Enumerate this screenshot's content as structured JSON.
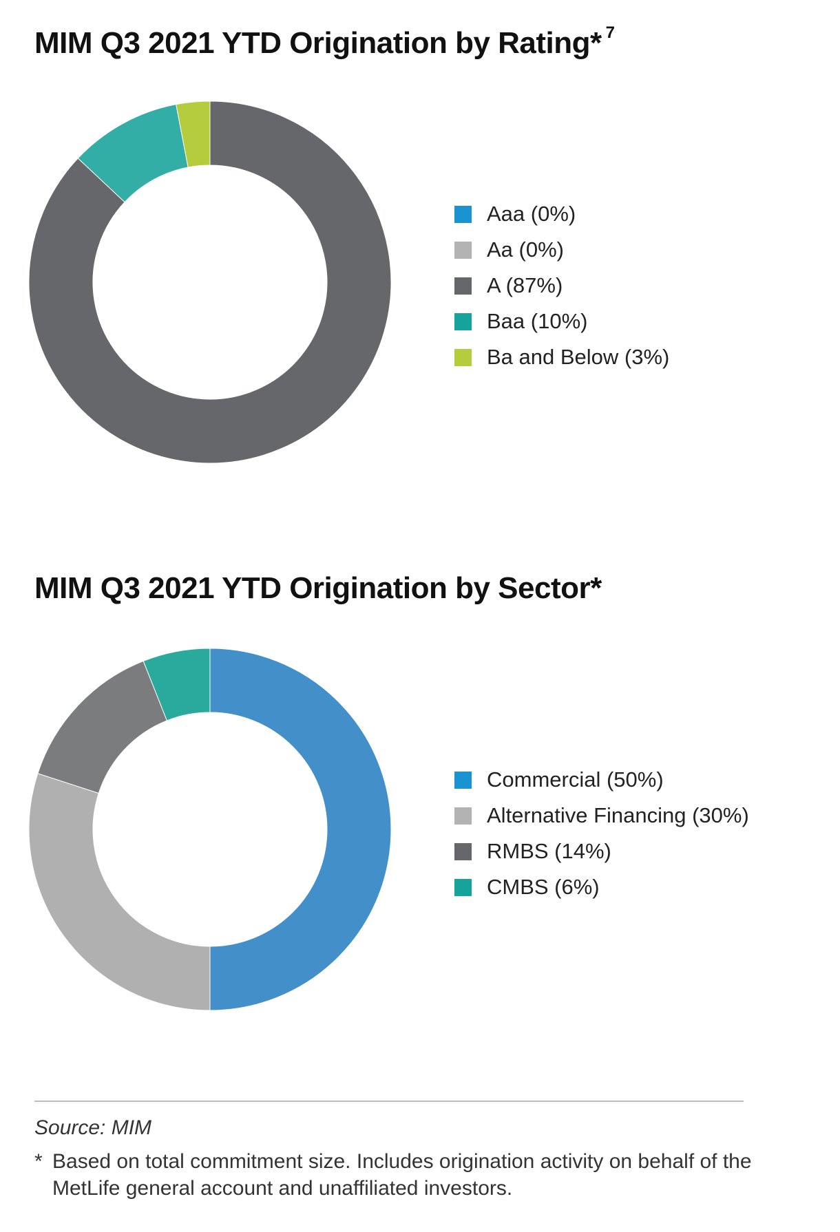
{
  "chart_data": [
    {
      "type": "pie",
      "variant": "donut",
      "title": "MIM Q3 2021 YTD Origination by Rating*",
      "title_superscript": "7",
      "legend_position": "right",
      "categories": [
        "Aaa",
        "Aa",
        "A",
        "Baa",
        "Ba and Below"
      ],
      "values": [
        0,
        0,
        87,
        10,
        3
      ],
      "unit": "%",
      "legend_labels": [
        "Aaa (0%)",
        "Aa (0%)",
        "A (87%)",
        "Baa (10%)",
        "Ba and Below (3%)"
      ],
      "colors": [
        "#1a93d3",
        "#b3b3b3",
        "#66676b",
        "#16a39b",
        "#b5cc3d"
      ],
      "slice_colors": [
        "#1a93d3",
        "#b3b3b3",
        "#66676b",
        "#33aea6",
        "#b5cc3d"
      ]
    },
    {
      "type": "pie",
      "variant": "donut",
      "title": "MIM Q3 2021 YTD Origination by Sector*",
      "legend_position": "right",
      "categories": [
        "Commercial",
        "Alternative Financing",
        "RMBS",
        "CMBS"
      ],
      "values": [
        50,
        30,
        14,
        6
      ],
      "unit": "%",
      "legend_labels": [
        "Commercial (50%)",
        "Alternative Financing (30%)",
        "RMBS (14%)",
        "CMBS (6%)"
      ],
      "colors": [
        "#1a93d3",
        "#b3b3b3",
        "#66676b",
        "#16a39b"
      ],
      "slice_colors": [
        "#428fca",
        "#b0b0b0",
        "#7b7c7e",
        "#2aaa9d"
      ]
    }
  ],
  "source": "Source: MIM",
  "footnote": {
    "mark": "*",
    "text": "Based on total commitment size. Includes origination activity on behalf of the MetLife general account and unaffiliated investors."
  }
}
